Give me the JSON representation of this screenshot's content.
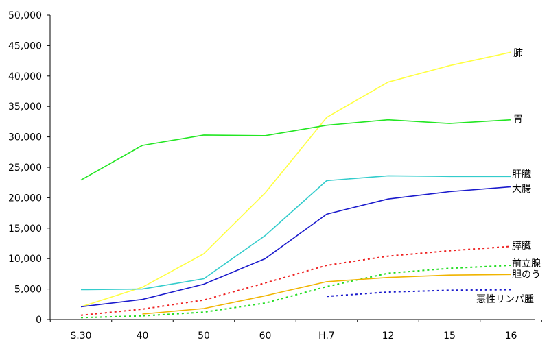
{
  "chart_data": {
    "type": "line",
    "categories": [
      "S.30",
      "40",
      "50",
      "60",
      "H.7",
      "12",
      "15",
      "16"
    ],
    "ylim": [
      0,
      50000
    ],
    "yticks": [
      "0",
      "5,000",
      "10,000",
      "15,000",
      "20,000",
      "25,000",
      "30,000",
      "35,000",
      "40,000",
      "45,000",
      "50,000"
    ],
    "grid": false,
    "series": [
      {
        "name": "肺",
        "color": "#ffff40",
        "style": "solid",
        "values": [
          2100,
          5300,
          10800,
          20800,
          33200,
          39000,
          41700,
          43900
        ]
      },
      {
        "name": "胃",
        "color": "#22e622",
        "style": "solid",
        "values": [
          22900,
          28600,
          30300,
          30200,
          31900,
          32800,
          32200,
          32800
        ]
      },
      {
        "name": "肝臓",
        "color": "#33cccc",
        "style": "solid",
        "values": [
          4900,
          5000,
          6700,
          13800,
          22800,
          23600,
          23500,
          23500
        ]
      },
      {
        "name": "大腸",
        "color": "#1a1acc",
        "style": "solid",
        "values": [
          2100,
          3300,
          5800,
          10000,
          17300,
          19800,
          21000,
          21800
        ]
      },
      {
        "name": "膵臓",
        "color": "#ee2222",
        "style": "dotted",
        "values": [
          700,
          1700,
          3200,
          6000,
          8900,
          10400,
          11300,
          12000
        ]
      },
      {
        "name": "前立腺",
        "color": "#22dd22",
        "style": "dotted",
        "values": [
          300,
          600,
          1200,
          2700,
          5400,
          7600,
          8400,
          8900
        ]
      },
      {
        "name": "胆のう",
        "color": "#f0b400",
        "style": "solid",
        "values": [
          null,
          900,
          1800,
          3900,
          6200,
          6900,
          7300,
          7400
        ]
      },
      {
        "name": "悪性リンパ腫",
        "color": "#1a1acc",
        "style": "dotted",
        "values": [
          null,
          null,
          null,
          null,
          3800,
          4500,
          4800,
          4900
        ]
      }
    ]
  }
}
